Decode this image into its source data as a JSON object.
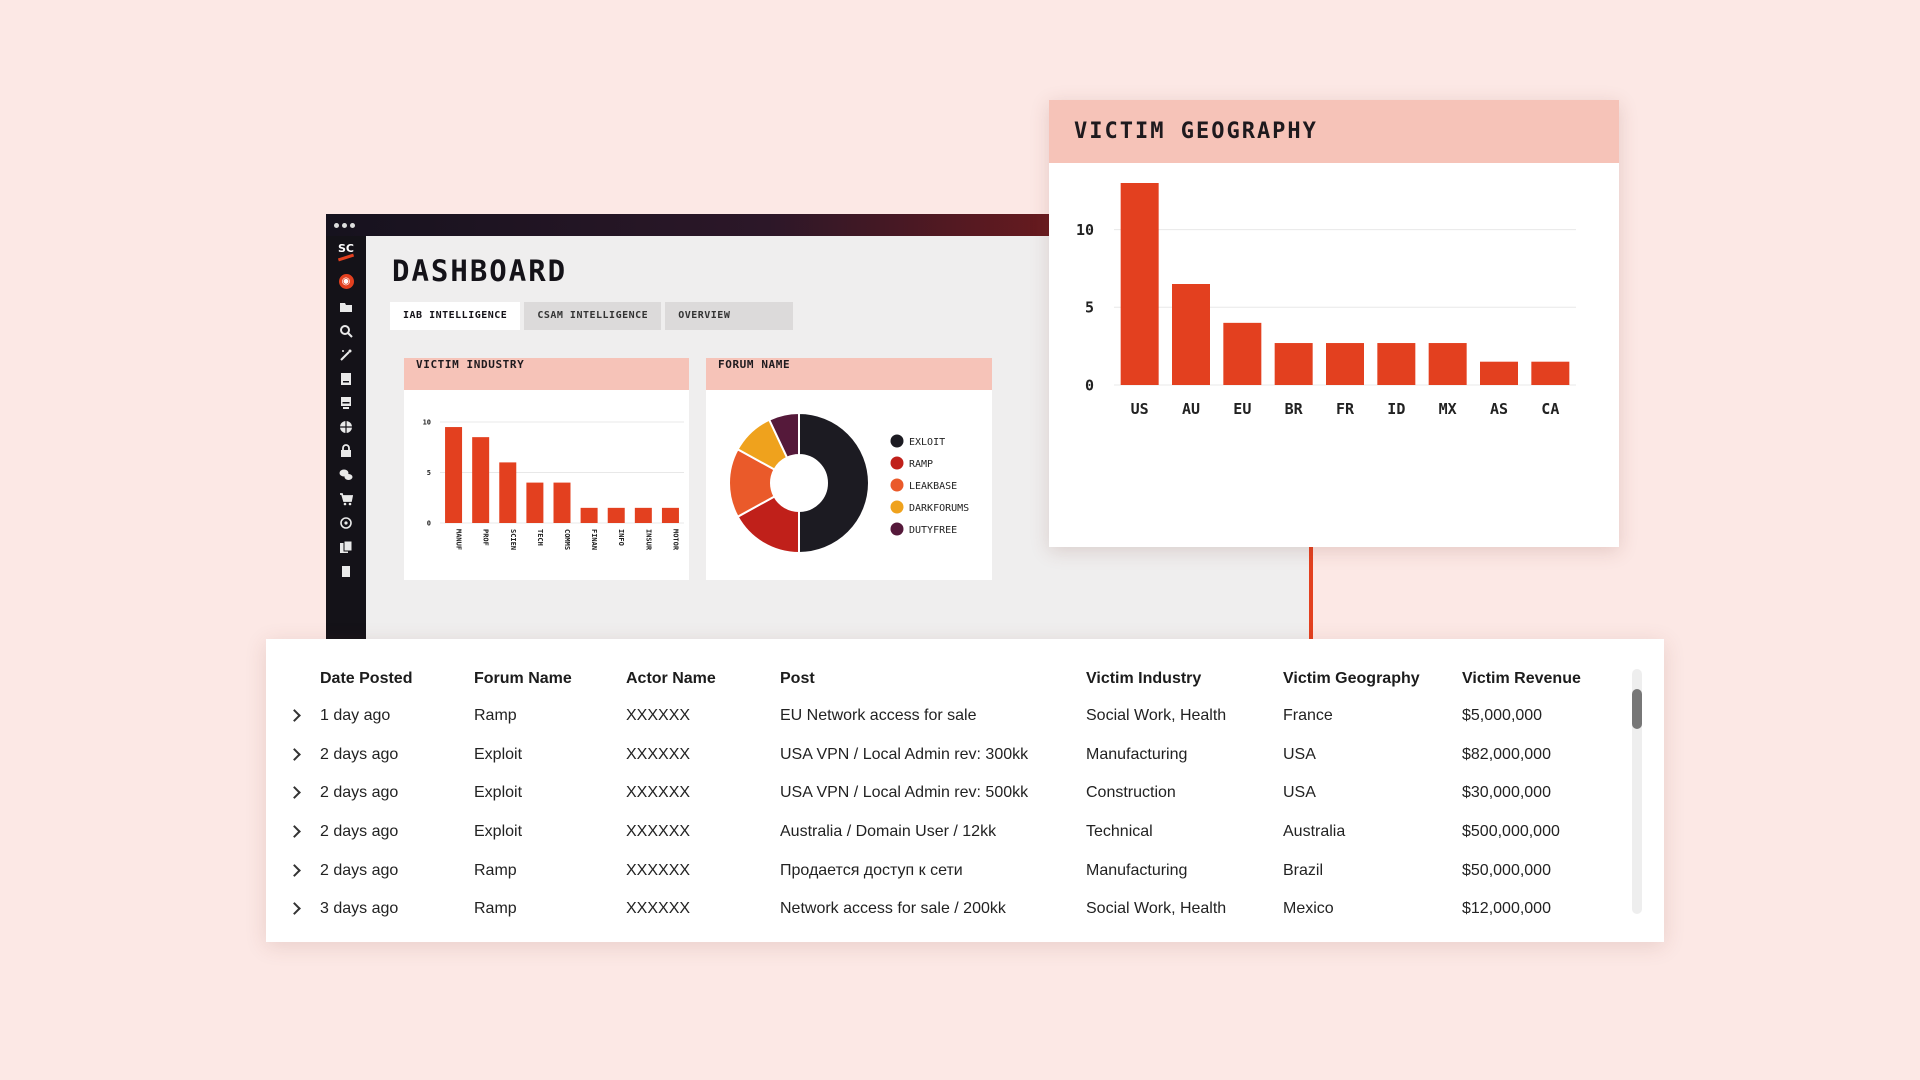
{
  "window": {
    "logo": "SC",
    "title": "DASHBOARD",
    "tabs": [
      {
        "label": "IAB INTELLIGENCE",
        "active": true
      },
      {
        "label": "CSAM INTELLIGENCE",
        "active": false
      },
      {
        "label": "OVERVIEW",
        "active": false
      }
    ],
    "sidebar_icons": [
      "dashboard-icon",
      "folder-icon",
      "search-icon",
      "magic-wand-icon",
      "document-icon",
      "monitor-icon",
      "globe-icon",
      "lock-icon",
      "chat-icon",
      "cart-icon",
      "target-icon",
      "copy-icon",
      "clipboard-icon"
    ]
  },
  "colors": {
    "accent": "#e3401f",
    "header": "#f6c3b8",
    "background": "#fce8e5",
    "dark": "#141218"
  },
  "industry_card": {
    "title": "VICTIM INDUSTRY",
    "chart_data": {
      "type": "bar",
      "categories": [
        "MANUF",
        "PROF",
        "SCIEN",
        "TECH",
        "COMMS",
        "FINAN",
        "INFO",
        "INSUR",
        "MOTOR"
      ],
      "values": [
        9.5,
        8.5,
        6,
        4,
        4,
        1.5,
        1.5,
        1.5,
        1.5
      ],
      "ylim": [
        0,
        10
      ],
      "yticks": [
        0,
        5,
        10
      ]
    }
  },
  "forum_card": {
    "title": "FORUM NAME",
    "chart_data": {
      "type": "pie",
      "labels": [
        "EXLOIT",
        "RAMP",
        "LEAKBASE",
        "DARKFORUMS",
        "DUTYFREE"
      ],
      "values": [
        50,
        17,
        16,
        10,
        7
      ],
      "colors": [
        "#1c1b22",
        "#c0201a",
        "#ea5a2a",
        "#efa21d",
        "#55193a"
      ]
    }
  },
  "geo_card": {
    "title": "VICTIM GEOGRAPHY",
    "chart_data": {
      "type": "bar",
      "categories": [
        "US",
        "AU",
        "EU",
        "BR",
        "FR",
        "ID",
        "MX",
        "AS",
        "CA"
      ],
      "values": [
        13,
        6.5,
        4,
        2.7,
        2.7,
        2.7,
        2.7,
        1.5,
        1.5
      ],
      "ylim": [
        0,
        13
      ],
      "yticks": [
        0,
        5,
        10
      ]
    }
  },
  "table": {
    "headers": [
      "Date Posted",
      "Forum Name",
      "Actor Name",
      "Post",
      "Victim Industry",
      "Victim Geography",
      "Victim Revenue"
    ],
    "rows": [
      [
        "1 day ago",
        "Ramp",
        "XXXXXX",
        "EU Network access for sale",
        "Social Work, Health",
        "France",
        "$5,000,000"
      ],
      [
        "2 days ago",
        "Exploit",
        "XXXXXX",
        "USA VPN / Local Admin rev: 300kk",
        "Manufacturing",
        "USA",
        "$82,000,000"
      ],
      [
        "2 days ago",
        "Exploit",
        "XXXXXX",
        "USA VPN / Local Admin rev: 500kk",
        "Construction",
        "USA",
        "$30,000,000"
      ],
      [
        "2 days ago",
        "Exploit",
        "XXXXXX",
        "Australia / Domain User / 12kk",
        "Technical",
        "Australia",
        "$500,000,000"
      ],
      [
        "2 days ago",
        "Ramp",
        "XXXXXX",
        "Продается доступ к сети",
        "Manufacturing",
        "Brazil",
        "$50,000,000"
      ],
      [
        "3 days ago",
        "Ramp",
        "XXXXXX",
        "Network access for sale / 200kk",
        "Social Work, Health",
        "Mexico",
        "$12,000,000"
      ]
    ]
  }
}
